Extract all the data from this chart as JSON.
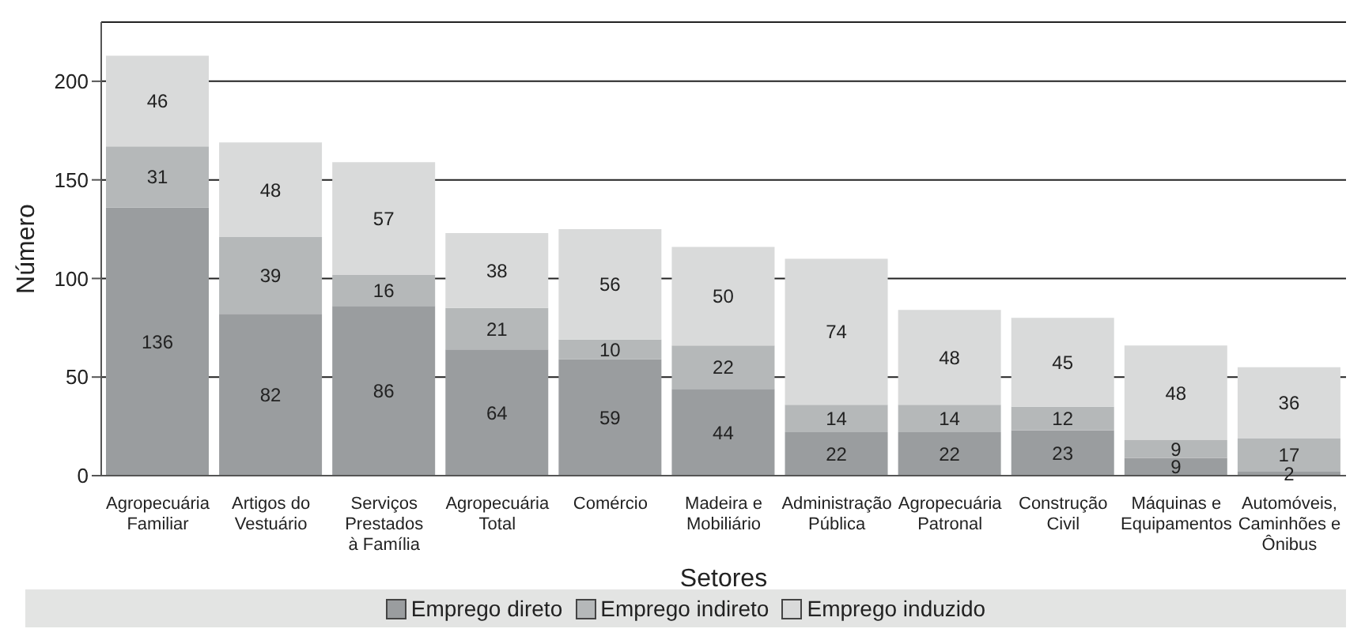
{
  "chart_data": {
    "type": "bar",
    "stacked": true,
    "xlabel": "Setores",
    "ylabel": "Número",
    "categories": [
      "Agropecuária\nFamiliar",
      "Artigos do\nVestuário",
      "Serviços\nPrestados\nà Família",
      "Agropecuária\nTotal",
      "Comércio",
      "Madeira e\nMobiliário",
      "Administração\nPública",
      "Agropecuária\nPatronal",
      "Construção\nCivil",
      "Máquinas e\nEquipamentos",
      "Automóveis,\nCaminhões e\nÔnibus"
    ],
    "series": [
      {
        "name": "Emprego direto",
        "color": "#9a9d9f",
        "values": [
          136,
          82,
          86,
          64,
          59,
          44,
          22,
          22,
          23,
          9,
          2
        ]
      },
      {
        "name": "Emprego indireto",
        "color": "#b5b8b9",
        "values": [
          31,
          39,
          16,
          21,
          10,
          22,
          14,
          14,
          12,
          9,
          17
        ]
      },
      {
        "name": "Emprego induzido",
        "color": "#d9dada",
        "values": [
          46,
          48,
          57,
          38,
          56,
          50,
          74,
          48,
          45,
          48,
          36
        ]
      }
    ],
    "ylim": [
      0,
      230
    ],
    "yticks": [
      0,
      50,
      100,
      150,
      200
    ],
    "grid": "y",
    "legend": "bottom",
    "data_labels": true
  }
}
